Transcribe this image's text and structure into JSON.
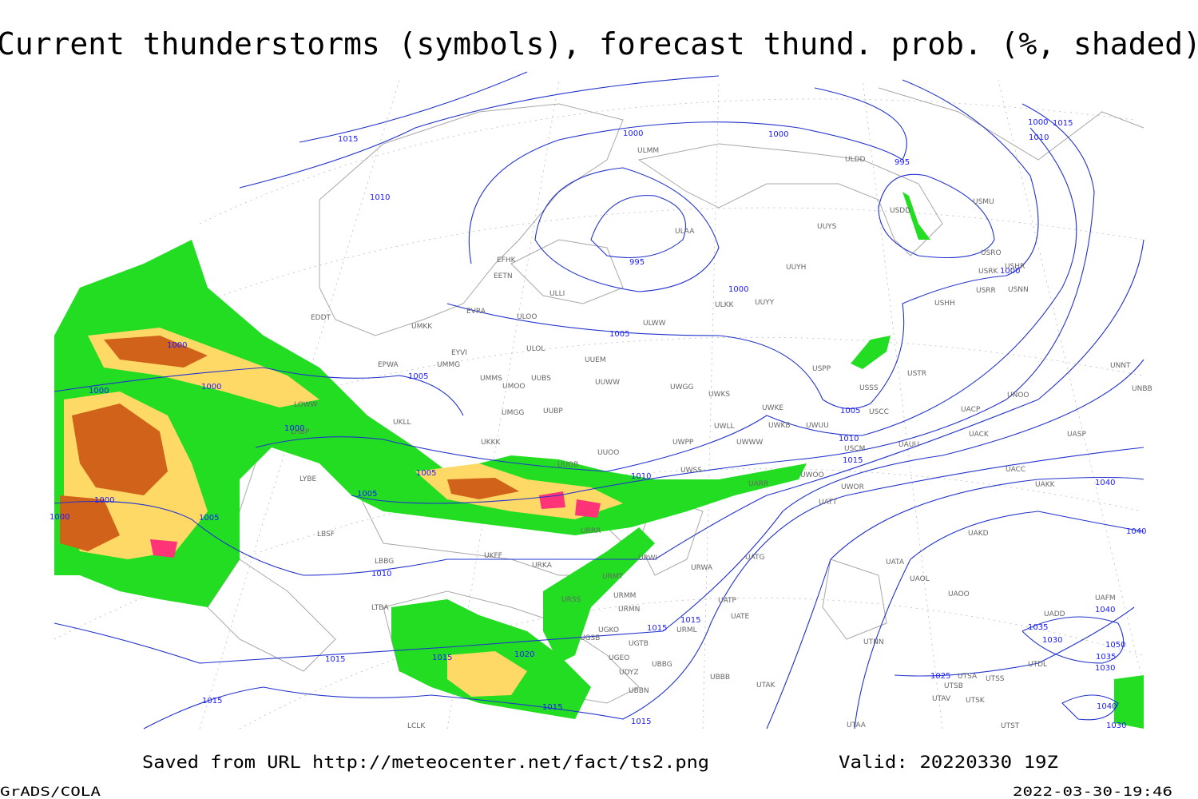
{
  "title": "Current thunderstorms (symbols), forecast thund. prob. (%, shaded)",
  "footer": {
    "source": "Saved from URL http://meteocenter.net/fact/ts2.png",
    "valid": "Valid: 20220330 19Z",
    "credit": "GrADS/COLA",
    "timestamp": "2022-03-30-19:46"
  },
  "isobar_labels": [
    "1015",
    "1000",
    "1000",
    "995",
    "1000",
    "1015",
    "1010",
    "1010",
    "995",
    "1000",
    "1000",
    "1005",
    "1000",
    "1005",
    "1000",
    "1000",
    "1000",
    "1005",
    "1010",
    "1015",
    "1005",
    "1010",
    "1005",
    "1040",
    "1000",
    "1005",
    "1000",
    "1040",
    "1010",
    "1040",
    "1015",
    "1015",
    "1035",
    "1030",
    "1050",
    "1015",
    "1015",
    "1020",
    "1035",
    "1030",
    "1025",
    "1015",
    "1015",
    "1040",
    "1015",
    "1030"
  ],
  "stations": [
    "ULMM",
    "ULDD",
    "USDD",
    "USMU",
    "ULAA",
    "UUYS",
    "EFHK",
    "EETN",
    "UUYH",
    "USRO",
    "USRK",
    "USHR",
    "USRR",
    "USNN",
    "ULLI",
    "ULKK",
    "UUYY",
    "USHH",
    "EVRA",
    "ULOO",
    "EDDT",
    "UMKK",
    "ULWW",
    "EYVI",
    "ULOL",
    "UUEM",
    "EPWA",
    "UMMG",
    "USPP",
    "USTR",
    "UMMS",
    "UMOO",
    "UUBS",
    "UUWW",
    "UWGG",
    "USSS",
    "UNNT",
    "UNBB",
    "LOWW",
    "UWKS",
    "UWKE",
    "USCC",
    "UACP",
    "UNOO",
    "UMGG",
    "UUBP",
    "LHBP",
    "UWKB",
    "UWUU",
    "UWLL",
    "UACK",
    "UASP",
    "UKLL",
    "UKKK",
    "UWPP",
    "UWWW",
    "USCM",
    "UAUU",
    "UUOO",
    "UUOB",
    "UWSS",
    "UACC",
    "LYBE",
    "UARR",
    "UWOO",
    "UWOR",
    "UAKK",
    "UATT",
    "URRR",
    "LBSF",
    "UAKD",
    "LBBG",
    "UKFF",
    "URWI",
    "UATG",
    "URKA",
    "UATA",
    "URWA",
    "URMT",
    "UAOL",
    "URMM",
    "UAOO",
    "UATE",
    "URSS",
    "UATP",
    "URMN",
    "LTBA",
    "UGSB",
    "URML",
    "UGTB",
    "UTNN",
    "UGKO",
    "UBBG",
    "UGEO",
    "UDYZ",
    "UBBB",
    "UBBN",
    "UTAK",
    "UTSA",
    "UTSS",
    "UTSB",
    "UTDL",
    "UTAV",
    "UTSK",
    "LCLK",
    "UTAA",
    "UTST",
    "UAFM",
    "UADD"
  ]
}
